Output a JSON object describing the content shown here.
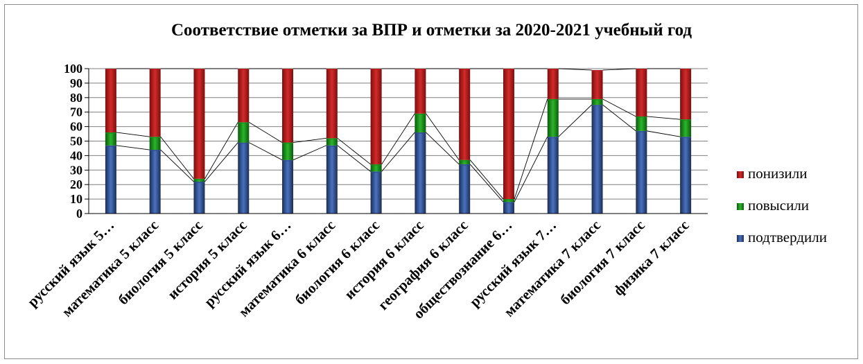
{
  "chart_data": {
    "type": "bar",
    "stacked": true,
    "title": "Соответствие отметки за ВПР и отметки за 2020-2021 учебный год",
    "categories": [
      "русский язык 5…",
      "математика 5 класс",
      "биология 5 класс",
      "история 5 класс",
      "русский язык 6…",
      "математика 6 класс",
      "биология 6 класс",
      "история 6 класс",
      "география 6 класс",
      "обществознание 6…",
      "русский язык 7…",
      "математика 7 класс",
      "биология 7 класс",
      "физика 7 класс"
    ],
    "series": [
      {
        "name": "подтвердили",
        "color": "#2e4d8c",
        "values": [
          47,
          44,
          22,
          49,
          37,
          47,
          29,
          56,
          34,
          8,
          53,
          75,
          57,
          53
        ]
      },
      {
        "name": "повысили",
        "color": "#1a8a1a",
        "values": [
          9,
          9,
          2,
          14,
          12,
          5,
          5,
          13,
          3,
          2,
          26,
          4,
          10,
          12
        ]
      },
      {
        "name": "понизили",
        "color": "#b51c1c",
        "values": [
          44,
          47,
          76,
          37,
          51,
          48,
          66,
          31,
          63,
          90,
          21,
          20,
          33,
          35
        ]
      }
    ],
    "yticks": [
      0,
      10,
      20,
      30,
      40,
      50,
      60,
      70,
      80,
      90,
      100
    ],
    "ylim": [
      0,
      100
    ],
    "grid": true,
    "series_lines": true,
    "legend_position": "right"
  }
}
